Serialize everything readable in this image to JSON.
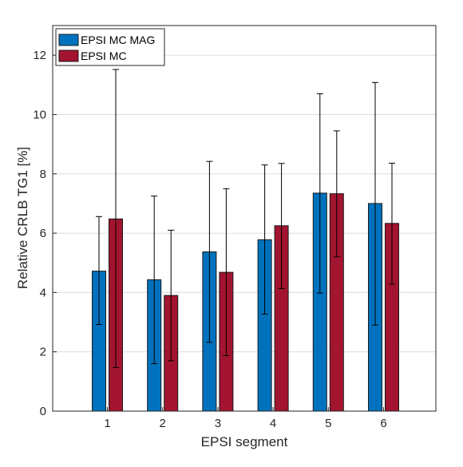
{
  "chart_data": {
    "type": "bar",
    "categories": [
      "1",
      "2",
      "3",
      "4",
      "5",
      "6"
    ],
    "series": [
      {
        "name": "EPSI MC MAG",
        "color": "#0072BD",
        "values": [
          4.72,
          4.43,
          5.37,
          5.78,
          7.35,
          7.0
        ],
        "err_low": [
          2.92,
          1.6,
          2.32,
          3.27,
          3.98,
          2.9
        ],
        "err_high": [
          6.56,
          7.25,
          8.42,
          8.3,
          10.7,
          11.08
        ]
      },
      {
        "name": "EPSI MC",
        "color": "#A2142F",
        "values": [
          6.48,
          3.9,
          4.68,
          6.25,
          7.33,
          6.33
        ],
        "err_low": [
          1.47,
          1.7,
          1.87,
          4.13,
          5.2,
          4.28
        ],
        "err_high": [
          11.52,
          6.1,
          7.5,
          8.35,
          9.45,
          8.36
        ]
      }
    ],
    "xlabel": "EPSI segment",
    "ylabel": "Relative CRLB TG1 [%]",
    "ylim": [
      0,
      13
    ],
    "yticks": [
      "0",
      "2",
      "4",
      "6",
      "8",
      "10",
      "12"
    ],
    "grid": "horizontal",
    "legend": "top-left"
  }
}
